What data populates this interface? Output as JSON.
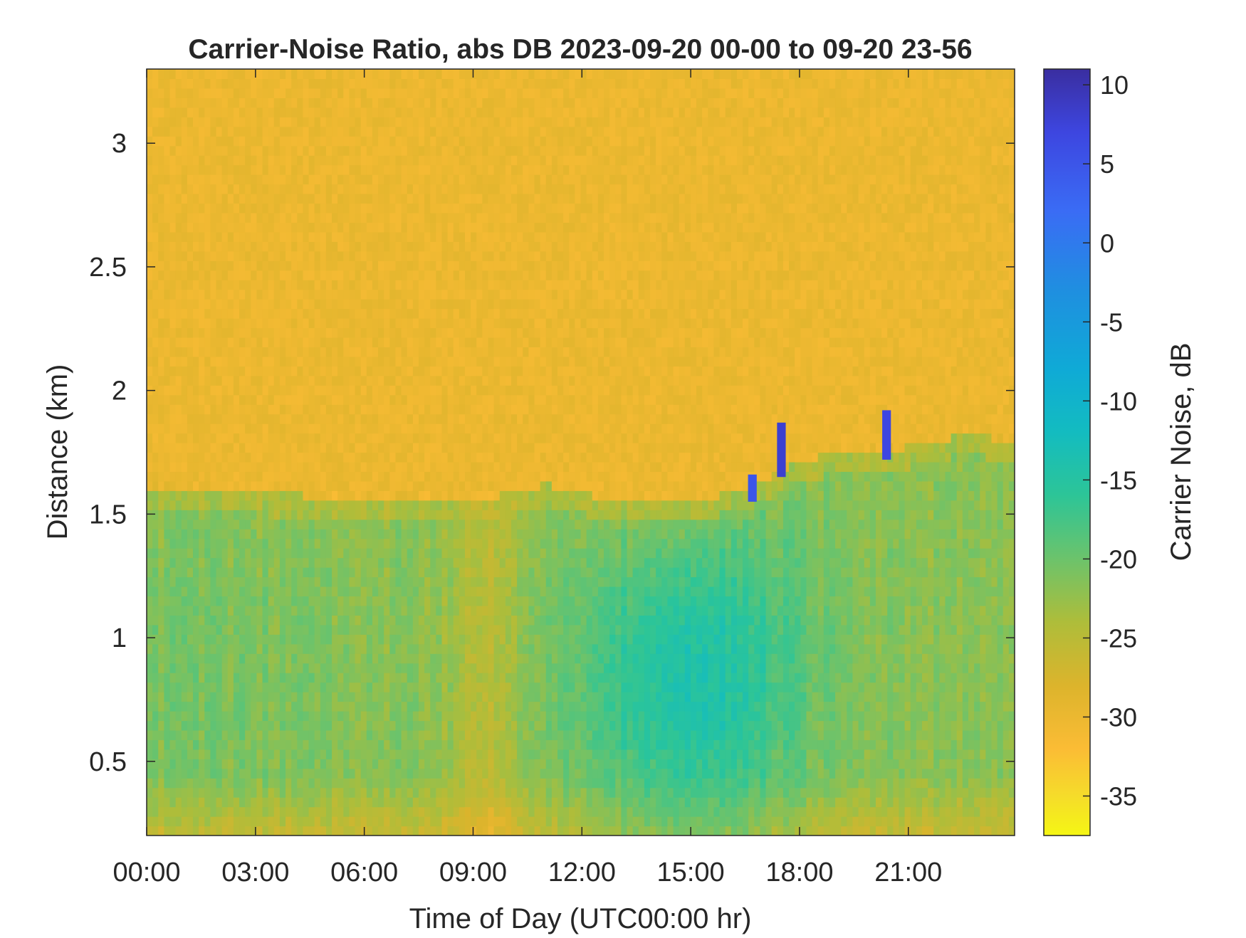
{
  "chart_data": {
    "type": "heatmap",
    "title": "Carrier-Noise Ratio, abs DB 2023-09-20 00-00 to 09-20 23-56",
    "xlabel": "Time of Day (UTC00:00 hr)",
    "ylabel": "Distance (km)",
    "colorbar_label": "Carrier Noise, dB",
    "x_ticks": [
      "00:00",
      "03:00",
      "06:00",
      "09:00",
      "12:00",
      "15:00",
      "18:00",
      "21:00"
    ],
    "x_tick_hours": [
      0,
      3,
      6,
      9,
      12,
      15,
      18,
      21
    ],
    "xlim_hours": [
      0,
      23.93
    ],
    "y_ticks": [
      "0.5",
      "1",
      "1.5",
      "2",
      "2.5",
      "3"
    ],
    "y_tick_values": [
      0.5,
      1,
      1.5,
      2,
      2.5,
      3
    ],
    "ylim_km": [
      0.2,
      3.3
    ],
    "colorbar_ticks": [
      "10",
      "5",
      "0",
      "-5",
      "-10",
      "-15",
      "-20",
      "-25",
      "-30",
      "-35"
    ],
    "colorbar_tick_values": [
      10,
      5,
      0,
      -5,
      -10,
      -15,
      -20,
      -25,
      -30,
      -35
    ],
    "clim_db": [
      -37.5,
      11
    ],
    "colormap": "parula_reversed",
    "colormap_stops": [
      {
        "value": 11,
        "color": "#3a2ea0"
      },
      {
        "value": 7,
        "color": "#3d46e0"
      },
      {
        "value": 2,
        "color": "#3a6cf5"
      },
      {
        "value": -3,
        "color": "#1f8fe0"
      },
      {
        "value": -8,
        "color": "#0faad6"
      },
      {
        "value": -12,
        "color": "#13bcc0"
      },
      {
        "value": -16,
        "color": "#2dc597"
      },
      {
        "value": -20,
        "color": "#6cc36b"
      },
      {
        "value": -24,
        "color": "#aebd3a"
      },
      {
        "value": -28,
        "color": "#dcb42c"
      },
      {
        "value": -32,
        "color": "#fbbc35"
      },
      {
        "value": -35,
        "color": "#f5dc2a"
      },
      {
        "value": -37.5,
        "color": "#f5f614"
      }
    ],
    "aerosol_layer_top_km": [
      {
        "hour": 0,
        "km": 1.6
      },
      {
        "hour": 3,
        "km": 1.58
      },
      {
        "hour": 6,
        "km": 1.57
      },
      {
        "hour": 9,
        "km": 1.55
      },
      {
        "hour": 11,
        "km": 1.62
      },
      {
        "hour": 13,
        "km": 1.55
      },
      {
        "hour": 15,
        "km": 1.55
      },
      {
        "hour": 16.5,
        "km": 1.6
      },
      {
        "hour": 18,
        "km": 1.72
      },
      {
        "hour": 19.5,
        "km": 1.75
      },
      {
        "hour": 21,
        "km": 1.77
      },
      {
        "hour": 22.5,
        "km": 1.82
      },
      {
        "hour": 23.93,
        "km": 1.8
      }
    ],
    "background_level_db": -30,
    "boundary_layer_min_db": -14,
    "cloud_returns": [
      {
        "hour": 16.7,
        "km_bottom": 1.55,
        "km_top": 1.66,
        "db": 5
      },
      {
        "hour": 17.5,
        "km_bottom": 1.65,
        "km_top": 1.87,
        "db": 8
      },
      {
        "hour": 20.4,
        "km_bottom": 1.72,
        "km_top": 1.92,
        "db": 7
      }
    ]
  }
}
